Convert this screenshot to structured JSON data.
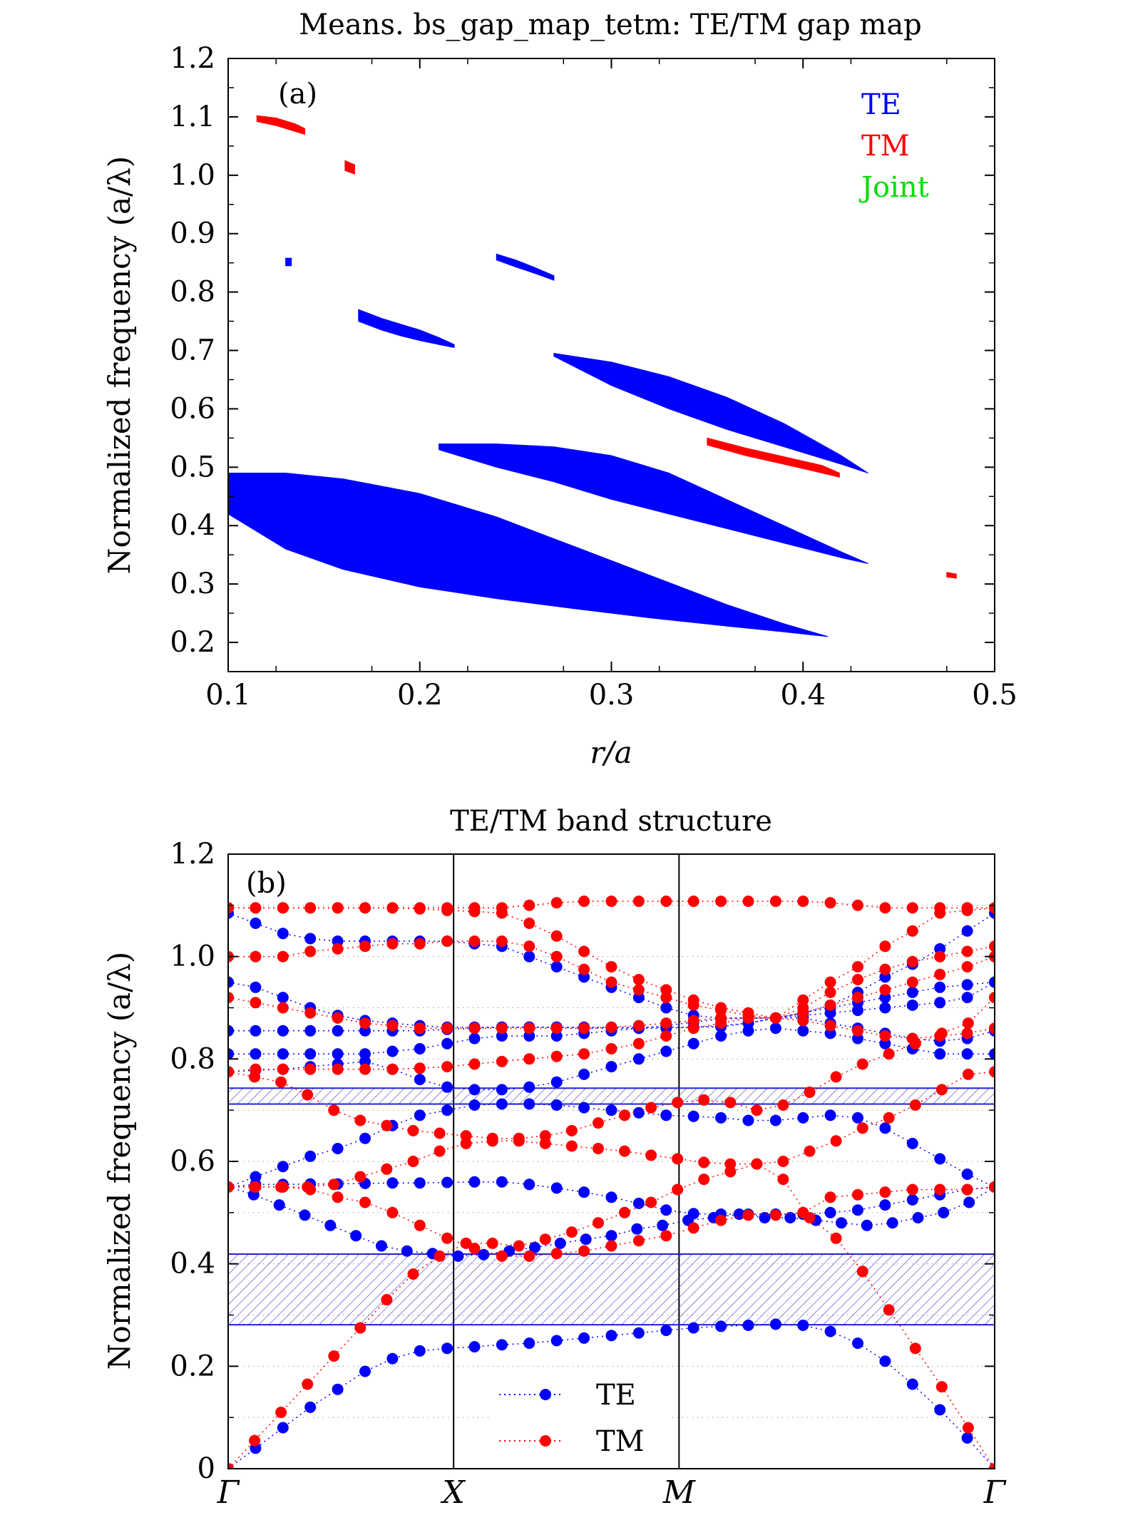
{
  "chart_data": [
    {
      "id": "a",
      "type": "area",
      "title": "Means. bs_gap_map_tetm: TE/TM gap map",
      "panel_label": "(a)",
      "xlabel": "r/a",
      "ylabel": "Normalized frequency (a/λ)",
      "xlim": [
        0.1,
        0.5
      ],
      "ylim": [
        0.15,
        1.2
      ],
      "xticks": [
        0.1,
        0.2,
        0.3,
        0.4,
        0.5
      ],
      "xtick_labels": [
        "0.1",
        "0.2",
        "0.3",
        "0.4",
        "0.5"
      ],
      "yticks": [
        0.2,
        0.3,
        0.4,
        0.5,
        0.6,
        0.7,
        0.8,
        0.9,
        1.0,
        1.1,
        1.2
      ],
      "ytick_labels": [
        "0.2",
        "0.3",
        "0.4",
        "0.5",
        "0.6",
        "0.7",
        "0.8",
        "0.9",
        "1.0",
        "1.1",
        "1.2"
      ],
      "legend": [
        {
          "label": "TE",
          "color": "#0000ff"
        },
        {
          "label": "TM",
          "color": "#ff0000"
        },
        {
          "label": "Joint",
          "color": "#00dd00"
        }
      ],
      "legend_position": "top-right",
      "grid": false,
      "gaps": [
        {
          "mode": "TE",
          "r": [
            0.1,
            0.13,
            0.16,
            0.2,
            0.24,
            0.28,
            0.32,
            0.36,
            0.39,
            0.413
          ],
          "lower": [
            0.42,
            0.36,
            0.325,
            0.295,
            0.275,
            0.258,
            0.242,
            0.228,
            0.218,
            0.21
          ],
          "upper": [
            0.49,
            0.49,
            0.48,
            0.455,
            0.415,
            0.365,
            0.315,
            0.265,
            0.232,
            0.21
          ]
        },
        {
          "mode": "TE",
          "r": [
            0.21,
            0.24,
            0.27,
            0.3,
            0.33,
            0.36,
            0.39,
            0.42,
            0.434
          ],
          "lower": [
            0.53,
            0.5,
            0.475,
            0.445,
            0.42,
            0.395,
            0.37,
            0.345,
            0.335
          ],
          "upper": [
            0.54,
            0.54,
            0.535,
            0.52,
            0.49,
            0.445,
            0.4,
            0.355,
            0.335
          ]
        },
        {
          "mode": "TE",
          "r": [
            0.27,
            0.3,
            0.33,
            0.36,
            0.39,
            0.42,
            0.434
          ],
          "lower": [
            0.69,
            0.64,
            0.6,
            0.565,
            0.535,
            0.505,
            0.49
          ],
          "upper": [
            0.695,
            0.68,
            0.655,
            0.62,
            0.575,
            0.52,
            0.49
          ]
        },
        {
          "mode": "TE",
          "r": [
            0.168,
            0.18,
            0.19,
            0.2,
            0.21,
            0.218
          ],
          "lower": [
            0.75,
            0.735,
            0.725,
            0.717,
            0.71,
            0.705
          ],
          "upper": [
            0.77,
            0.755,
            0.745,
            0.735,
            0.722,
            0.71
          ]
        },
        {
          "mode": "TE",
          "r": [
            0.24,
            0.25,
            0.26,
            0.27
          ],
          "lower": [
            0.855,
            0.843,
            0.832,
            0.82
          ],
          "upper": [
            0.865,
            0.855,
            0.842,
            0.828
          ]
        },
        {
          "mode": "TE",
          "r": [
            0.13,
            0.133
          ],
          "lower": [
            0.845,
            0.845
          ],
          "upper": [
            0.858,
            0.858
          ]
        },
        {
          "mode": "TM",
          "r": [
            0.115,
            0.125,
            0.135,
            0.14
          ],
          "lower": [
            1.092,
            1.085,
            1.075,
            1.07
          ],
          "upper": [
            1.102,
            1.098,
            1.088,
            1.08
          ]
        },
        {
          "mode": "TM",
          "r": [
            0.161,
            0.166
          ],
          "lower": [
            1.008,
            1.002
          ],
          "upper": [
            1.025,
            1.018
          ]
        },
        {
          "mode": "TM",
          "r": [
            0.35,
            0.37,
            0.39,
            0.41,
            0.419
          ],
          "lower": [
            0.538,
            0.52,
            0.505,
            0.49,
            0.483
          ],
          "upper": [
            0.55,
            0.533,
            0.518,
            0.503,
            0.49
          ]
        },
        {
          "mode": "TM",
          "r": [
            0.475,
            0.48
          ],
          "lower": [
            0.312,
            0.31
          ],
          "upper": [
            0.32,
            0.317
          ]
        }
      ]
    },
    {
      "id": "b",
      "type": "scatter",
      "title": "TE/TM band structure",
      "panel_label": "(b)",
      "xlabel": "",
      "ylabel": "Normalized frequency (a/λ)",
      "ylim": [
        0,
        1.2
      ],
      "yticks": [
        0,
        0.2,
        0.4,
        0.6,
        0.8,
        1.0,
        1.2
      ],
      "ytick_labels": [
        "0",
        "0.2",
        "0.4",
        "0.6",
        "0.8",
        "1.0",
        "1.2"
      ],
      "k_labels": [
        "Γ",
        "X",
        "M",
        "Γ"
      ],
      "k_index": [
        0,
        10,
        20,
        34
      ],
      "grid": "dotted horizontal",
      "legend": [
        {
          "label": "TE",
          "color": "#0000ff"
        },
        {
          "label": "TM",
          "color": "#ff0000"
        }
      ],
      "legend_position": "bottom-center",
      "gap_bands": [
        [
          0.281,
          0.419
        ],
        [
          0.712,
          0.743
        ]
      ],
      "series": [
        {
          "name": "TE",
          "color": "#0000ff",
          "bands": [
            [
              0,
              0.04,
              0.08,
              0.12,
              0.155,
              0.19,
              0.215,
              0.23,
              0.235,
              0.238,
              0.242,
              0.245,
              0.25,
              0.255,
              0.26,
              0.265,
              0.27,
              0.275,
              0.278,
              0.28,
              0.282,
              0.28,
              0.268,
              0.245,
              0.21,
              0.165,
              0.115,
              0.06,
              0
            ],
            [
              0.55,
              0.535,
              0.515,
              0.495,
              0.475,
              0.455,
              0.435,
              0.425,
              0.42,
              0.415,
              0.418,
              0.425,
              0.432,
              0.44,
              0.448,
              0.455,
              0.468,
              0.475,
              0.485,
              0.49,
              0.497,
              0.49,
              0.49,
              0.485,
              0.48,
              0.475,
              0.48,
              0.49,
              0.5,
              0.52,
              0.55
            ],
            [
              0.55,
              0.555,
              0.555,
              0.556,
              0.556,
              0.557,
              0.558,
              0.558,
              0.559,
              0.56,
              0.56,
              0.555,
              0.548,
              0.54,
              0.53,
              0.518,
              0.505,
              0.498,
              0.497,
              0.497,
              0.497,
              0.497,
              0.5,
              0.505,
              0.515,
              0.525,
              0.535,
              0.545,
              0.55
            ],
            [
              0.55,
              0.57,
              0.59,
              0.61,
              0.625,
              0.645,
              0.67,
              0.69,
              0.7,
              0.71,
              0.712,
              0.712,
              0.71,
              0.705,
              0.7,
              0.695,
              0.69,
              0.688,
              0.685,
              0.68,
              0.68,
              0.685,
              0.69,
              0.685,
              0.665,
              0.635,
              0.605,
              0.575,
              0.55
            ],
            [
              0.775,
              0.778,
              0.78,
              0.785,
              0.79,
              0.795,
              0.78,
              0.76,
              0.745,
              0.74,
              0.74,
              0.745,
              0.755,
              0.77,
              0.785,
              0.8,
              0.815,
              0.83,
              0.845,
              0.855,
              0.86,
              0.855,
              0.85,
              0.84,
              0.83,
              0.82,
              0.81,
              0.81,
              0.81
            ],
            [
              0.81,
              0.81,
              0.81,
              0.81,
              0.81,
              0.81,
              0.815,
              0.82,
              0.83,
              0.84,
              0.845,
              0.845,
              0.845,
              0.85,
              0.855,
              0.86,
              0.86,
              0.862,
              0.865,
              0.87,
              0.88,
              0.885,
              0.89,
              0.895,
              0.9,
              0.905,
              0.91,
              0.92,
              0.95
            ],
            [
              0.855,
              0.855,
              0.855,
              0.855,
              0.855,
              0.855,
              0.855,
              0.855,
              0.858,
              0.86,
              0.862,
              0.862,
              0.862,
              0.862,
              0.862,
              0.862,
              0.862,
              0.862,
              0.863,
              0.87,
              0.88,
              0.89,
              0.905,
              0.93,
              0.96,
              0.985,
              1.015,
              1.05,
              1.085
            ],
            [
              0.95,
              0.94,
              0.92,
              0.9,
              0.885,
              0.875,
              0.87,
              0.865,
              0.862,
              0.862,
              0.862,
              0.862,
              0.862,
              0.86,
              0.86,
              0.86,
              0.865,
              0.872,
              0.878,
              0.88,
              0.88,
              0.88,
              0.87,
              0.86,
              0.85,
              0.84,
              0.835,
              0.84,
              0.855
            ],
            [
              1.085,
              1.065,
              1.045,
              1.035,
              1.03,
              1.03,
              1.03,
              1.03,
              1.03,
              1.025,
              1.02,
              1.0,
              0.98,
              0.96,
              0.94,
              0.92,
              0.9,
              0.885,
              0.88,
              0.88,
              0.88,
              0.89,
              0.9,
              0.91,
              0.92,
              0.93,
              0.94,
              0.945,
              0.95
            ]
          ]
        },
        {
          "name": "TM",
          "color": "#ff0000",
          "bands": [
            [
              0,
              0.055,
              0.11,
              0.165,
              0.22,
              0.275,
              0.33,
              0.38,
              0.415,
              0.44,
              0.44,
              0.435,
              0.448,
              0.462,
              0.48,
              0.5,
              0.52,
              0.545,
              0.565,
              0.58,
              0.595,
              0.565,
              0.49,
              0.45,
              0.385,
              0.31,
              0.235,
              0.16,
              0.08,
              0
            ],
            [
              0.55,
              0.55,
              0.55,
              0.545,
              0.53,
              0.52,
              0.5,
              0.475,
              0.45,
              0.43,
              0.415,
              0.415,
              0.42,
              0.425,
              0.435,
              0.445,
              0.455,
              0.47,
              0.485,
              0.495,
              0.495,
              0.5,
              0.53,
              0.535,
              0.54,
              0.545,
              0.545,
              0.545,
              0.55
            ],
            [
              0.55,
              0.55,
              0.55,
              0.55,
              0.555,
              0.57,
              0.585,
              0.6,
              0.62,
              0.635,
              0.64,
              0.64,
              0.635,
              0.63,
              0.625,
              0.62,
              0.612,
              0.605,
              0.598,
              0.595,
              0.595,
              0.6,
              0.62,
              0.64,
              0.665,
              0.685,
              0.71,
              0.74,
              0.77,
              0.775
            ],
            [
              0.775,
              0.765,
              0.755,
              0.73,
              0.7,
              0.68,
              0.67,
              0.66,
              0.655,
              0.65,
              0.645,
              0.645,
              0.65,
              0.66,
              0.675,
              0.69,
              0.705,
              0.715,
              0.72,
              0.715,
              0.7,
              0.71,
              0.735,
              0.765,
              0.79,
              0.81,
              0.83,
              0.85,
              0.87,
              0.92
            ],
            [
              0.775,
              0.78,
              0.78,
              0.78,
              0.78,
              0.78,
              0.78,
              0.782,
              0.785,
              0.79,
              0.795,
              0.8,
              0.805,
              0.81,
              0.82,
              0.83,
              0.845,
              0.86,
              0.87,
              0.88,
              0.88,
              0.875,
              0.865,
              0.855,
              0.845,
              0.84,
              0.845,
              0.85,
              0.86
            ],
            [
              0.92,
              0.91,
              0.9,
              0.89,
              0.88,
              0.87,
              0.865,
              0.86,
              0.86,
              0.86,
              0.86,
              0.86,
              0.86,
              0.86,
              0.862,
              0.865,
              0.87,
              0.875,
              0.88,
              0.88,
              0.88,
              0.89,
              0.905,
              0.92,
              0.935,
              0.95,
              0.965,
              0.98,
              1.0
            ],
            [
              1.0,
              1.0,
              1.0,
              1.01,
              1.015,
              1.02,
              1.025,
              1.025,
              1.03,
              1.03,
              1.03,
              1.02,
              1.0,
              0.975,
              0.95,
              0.935,
              0.92,
              0.905,
              0.895,
              0.885,
              0.88,
              0.9,
              0.93,
              0.955,
              0.975,
              0.99,
              1.0,
              1.01,
              1.02
            ],
            [
              1.095,
              1.095,
              1.095,
              1.095,
              1.095,
              1.095,
              1.095,
              1.093,
              1.09,
              1.088,
              1.085,
              1.065,
              1.04,
              1.01,
              0.98,
              0.955,
              0.935,
              0.915,
              0.9,
              0.89,
              0.88,
              0.915,
              0.95,
              0.98,
              1.02,
              1.05,
              1.085,
              1.09,
              1.095
            ],
            [
              1.095,
              1.095,
              1.095,
              1.095,
              1.095,
              1.095,
              1.095,
              1.095,
              1.095,
              1.095,
              1.095,
              1.1,
              1.105,
              1.108,
              1.108,
              1.108,
              1.108,
              1.108,
              1.108,
              1.108,
              1.108,
              1.108,
              1.105,
              1.1,
              1.095,
              1.095,
              1.095,
              1.095,
              1.095
            ]
          ]
        }
      ]
    }
  ]
}
